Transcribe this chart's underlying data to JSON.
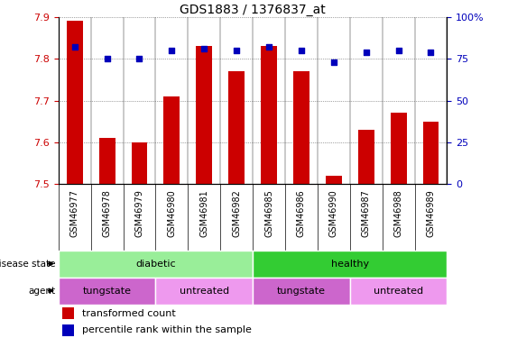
{
  "title": "GDS1883 / 1376837_at",
  "samples": [
    "GSM46977",
    "GSM46978",
    "GSM46979",
    "GSM46980",
    "GSM46981",
    "GSM46982",
    "GSM46985",
    "GSM46986",
    "GSM46990",
    "GSM46987",
    "GSM46988",
    "GSM46989"
  ],
  "transformed_count": [
    7.89,
    7.61,
    7.6,
    7.71,
    7.83,
    7.77,
    7.83,
    7.77,
    7.52,
    7.63,
    7.67,
    7.65
  ],
  "percentile_rank": [
    82,
    75,
    75,
    80,
    81,
    80,
    82,
    80,
    73,
    79,
    80,
    79
  ],
  "ylim_left": [
    7.5,
    7.9
  ],
  "ylim_right": [
    0,
    100
  ],
  "yticks_left": [
    7.5,
    7.6,
    7.7,
    7.8,
    7.9
  ],
  "yticks_right": [
    0,
    25,
    50,
    75,
    100
  ],
  "ytick_labels_right": [
    "0",
    "25",
    "50",
    "75",
    "100%"
  ],
  "disease_color_diabetic": "#99EE99",
  "disease_color_healthy": "#33CC33",
  "agent_color_tungstate": "#CC66CC",
  "agent_color_untreated": "#EE99EE",
  "bar_color": "#CC0000",
  "dot_color": "#0000BB",
  "grid_color": "#555555",
  "label_color_left": "#CC0000",
  "label_color_right": "#0000BB",
  "bar_width": 0.5,
  "xtick_bg_color": "#CCCCCC",
  "legend_items": [
    "transformed count",
    "percentile rank within the sample"
  ],
  "diabetic_count": 6,
  "healthy_count": 6,
  "tungstate1_count": 3,
  "untreated1_count": 3,
  "tungstate2_count": 3,
  "untreated2_count": 3
}
